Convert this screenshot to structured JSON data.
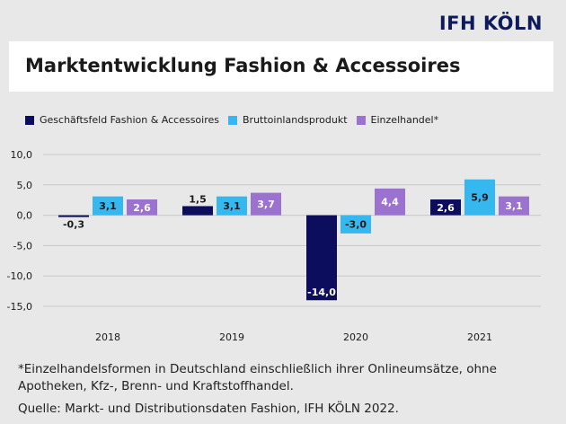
{
  "brand": "IFH KÖLN",
  "title": "Marktentwicklung Fashion & Accessoires",
  "colors": {
    "series": [
      "#0d0d5e",
      "#35b8f0",
      "#9b72cf"
    ],
    "background": "#e8e8e8"
  },
  "chart_data": {
    "type": "bar",
    "categories": [
      "2018",
      "2019",
      "2020",
      "2021"
    ],
    "series": [
      {
        "name": "Geschäftsfeld Fashion & Accessoires",
        "values": [
          -0.3,
          1.5,
          -14.0,
          2.6
        ],
        "labels": [
          "-0,3",
          "1,5",
          "-14,0",
          "2,6"
        ]
      },
      {
        "name": "Bruttoinlandsprodukt",
        "values": [
          3.1,
          3.1,
          -3.0,
          5.9
        ],
        "labels": [
          "3,1",
          "3,1",
          "-3,0",
          "5,9"
        ]
      },
      {
        "name": "Einzelhandel*",
        "values": [
          2.6,
          3.7,
          4.4,
          3.1
        ],
        "labels": [
          "2,6",
          "3,7",
          "4,4",
          "3,1"
        ]
      }
    ],
    "yticks": [
      10,
      5,
      0,
      -5,
      -10,
      -15
    ],
    "ytick_labels": [
      "10,0",
      "5,0",
      "0,0",
      "-5,0",
      "-10,0",
      "-15,0"
    ],
    "ylim": [
      -15,
      10
    ],
    "grid": true,
    "legend_position": "top-left"
  },
  "footnote": {
    "line1": "*Einzelhandelsformen in Deutschland einschließlich ihrer Onlineumsätze, ohne",
    "line2": "Apotheken, Kfz-, Brenn- und Kraftstoffhandel.",
    "source": "Quelle: Markt- und Distributionsdaten Fashion, IFH KÖLN 2022."
  }
}
